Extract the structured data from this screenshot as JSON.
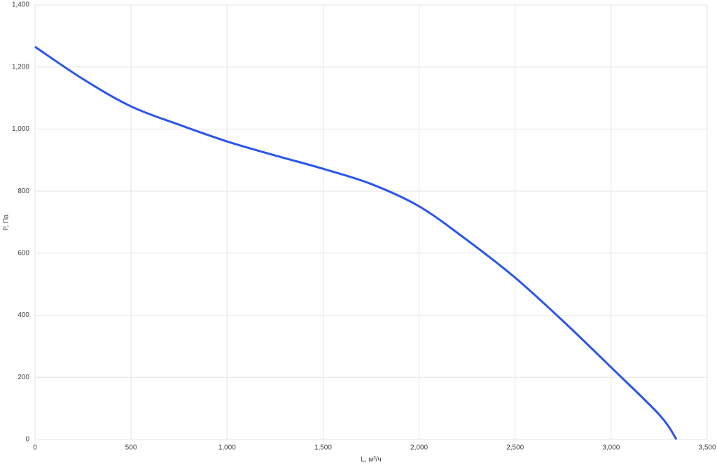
{
  "chart_data": {
    "type": "line",
    "x_label": "L, м³/ч",
    "y_label": "P, Па",
    "x": [
      0,
      250,
      500,
      750,
      1000,
      1250,
      1500,
      1750,
      2000,
      2250,
      2500,
      2750,
      3000,
      3250,
      3340
    ],
    "series": [
      {
        "name": "P",
        "color": "#2b55e8",
        "values": [
          1265,
          1161,
          1073,
          1014,
          960,
          915,
          872,
          823,
          751,
          642,
          521,
          381,
          232,
          80,
          0
        ]
      }
    ],
    "xlim": [
      0,
      3500
    ],
    "xticks": [
      0,
      500,
      {
        "value": 1000,
        "label": "1,000"
      },
      {
        "value": 1500,
        "label": "1,500"
      },
      {
        "value": 2000,
        "label": "2,000"
      },
      {
        "value": 2500,
        "label": "2,500"
      },
      {
        "value": 3000,
        "label": "3,000"
      },
      {
        "value": 3500,
        "label": "3,500"
      }
    ],
    "ylim": [
      0,
      1400
    ],
    "yticks": [
      0,
      200,
      400,
      600,
      800,
      {
        "value": 1000,
        "label": "1,000"
      },
      {
        "value": 1200,
        "label": "1,200"
      },
      {
        "value": 1400,
        "label": "1,400"
      }
    ],
    "grid": true
  }
}
